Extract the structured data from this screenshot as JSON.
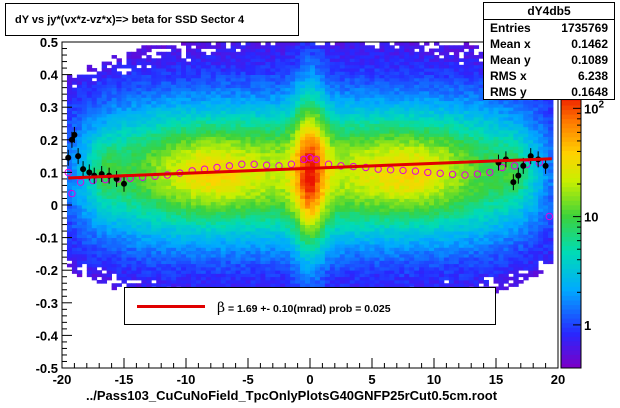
{
  "title": "dY vs     jy*(vx*z-vz*x)=> beta  for SSD Sector 4",
  "xlabel": "../Pass103_CuCuNoField_TpcOnlyPlotsG40GNFP25rCut0.5cm.root",
  "stats": {
    "name": "dY4db5",
    "rows": [
      {
        "label": "Entries",
        "value": "1735769"
      },
      {
        "label": "Mean x",
        "value": "0.1462"
      },
      {
        "label": "Mean y",
        "value": "0.1089"
      },
      {
        "label": "RMS x",
        "value": "6.238"
      },
      {
        "label": "RMS y",
        "value": "0.1648"
      }
    ]
  },
  "legend": {
    "symbol": "β",
    "text": " =     1.69 +-     0.10(mrad) prob = 0.025"
  },
  "colors": {
    "fit": "#e00000",
    "means": "#000000",
    "gauss": "#e000e0"
  },
  "chart_data": {
    "type": "heatmap",
    "xlim": [
      -20,
      20
    ],
    "ylim": [
      -0.5,
      0.5
    ],
    "xticks": [
      -20,
      -15,
      -10,
      -5,
      0,
      5,
      10,
      15,
      20
    ],
    "yticks": [
      -0.5,
      -0.4,
      -0.3,
      -0.2,
      -0.1,
      0,
      0.1,
      0.2,
      0.3,
      0.4,
      0.5
    ],
    "zscale": "log",
    "zticks": [
      {
        "value": 1,
        "label": "1"
      },
      {
        "value": 10,
        "label": "10"
      },
      {
        "value": 100,
        "label": "10^2"
      }
    ],
    "fit_line": {
      "x": [
        -19.5,
        19.5
      ],
      "y": [
        0.083,
        0.142
      ]
    },
    "profile_points": [
      {
        "x": -19.5,
        "y": 0.145
      },
      {
        "x": -19.2,
        "y": 0.2
      },
      {
        "x": -19.0,
        "y": 0.215
      },
      {
        "x": -18.7,
        "y": 0.15
      },
      {
        "x": -18.3,
        "y": 0.11
      },
      {
        "x": -17.8,
        "y": 0.1
      },
      {
        "x": -17.4,
        "y": 0.09
      },
      {
        "x": -16.8,
        "y": 0.095
      },
      {
        "x": -16.2,
        "y": 0.09
      },
      {
        "x": -15.6,
        "y": 0.08
      },
      {
        "x": -15.0,
        "y": 0.065
      },
      {
        "x": 15.2,
        "y": 0.13
      },
      {
        "x": 15.8,
        "y": 0.14
      },
      {
        "x": 16.4,
        "y": 0.07
      },
      {
        "x": 16.8,
        "y": 0.09
      },
      {
        "x": 17.2,
        "y": 0.12
      },
      {
        "x": 17.8,
        "y": 0.15
      },
      {
        "x": 18.4,
        "y": 0.14
      },
      {
        "x": 19.0,
        "y": 0.12
      }
    ],
    "gauss_points": [
      {
        "x": -19.5,
        "y": 0.1
      },
      {
        "x": -19.2,
        "y": 0.035
      },
      {
        "x": -18.5,
        "y": 0.07
      },
      {
        "x": -17.5,
        "y": 0.075
      },
      {
        "x": -16.5,
        "y": 0.078
      },
      {
        "x": -15.5,
        "y": 0.08
      },
      {
        "x": -14.5,
        "y": 0.082
      },
      {
        "x": -13.5,
        "y": 0.085
      },
      {
        "x": -12.5,
        "y": 0.088
      },
      {
        "x": -11.5,
        "y": 0.092
      },
      {
        "x": -10.5,
        "y": 0.098
      },
      {
        "x": -9.5,
        "y": 0.105
      },
      {
        "x": -8.5,
        "y": 0.11
      },
      {
        "x": -7.5,
        "y": 0.115
      },
      {
        "x": -6.5,
        "y": 0.12
      },
      {
        "x": -5.5,
        "y": 0.125
      },
      {
        "x": -4.5,
        "y": 0.125
      },
      {
        "x": -3.5,
        "y": 0.122
      },
      {
        "x": -2.5,
        "y": 0.12
      },
      {
        "x": -1.5,
        "y": 0.125
      },
      {
        "x": -0.5,
        "y": 0.14
      },
      {
        "x": 0.0,
        "y": 0.145
      },
      {
        "x": 0.5,
        "y": 0.14
      },
      {
        "x": 1.5,
        "y": 0.125
      },
      {
        "x": 2.5,
        "y": 0.12
      },
      {
        "x": 3.5,
        "y": 0.118
      },
      {
        "x": 4.5,
        "y": 0.115
      },
      {
        "x": 5.5,
        "y": 0.11
      },
      {
        "x": 6.5,
        "y": 0.108
      },
      {
        "x": 7.5,
        "y": 0.106
      },
      {
        "x": 8.5,
        "y": 0.104
      },
      {
        "x": 9.5,
        "y": 0.1
      },
      {
        "x": 10.5,
        "y": 0.097
      },
      {
        "x": 11.5,
        "y": 0.094
      },
      {
        "x": 12.5,
        "y": 0.092
      },
      {
        "x": 13.5,
        "y": 0.095
      },
      {
        "x": 14.5,
        "y": 0.1
      },
      {
        "x": 15.5,
        "y": 0.115
      },
      {
        "x": 16.5,
        "y": 0.12
      },
      {
        "x": 17.5,
        "y": 0.125
      },
      {
        "x": 18.5,
        "y": 0.13
      },
      {
        "x": 19.3,
        "y": -0.035
      }
    ]
  }
}
